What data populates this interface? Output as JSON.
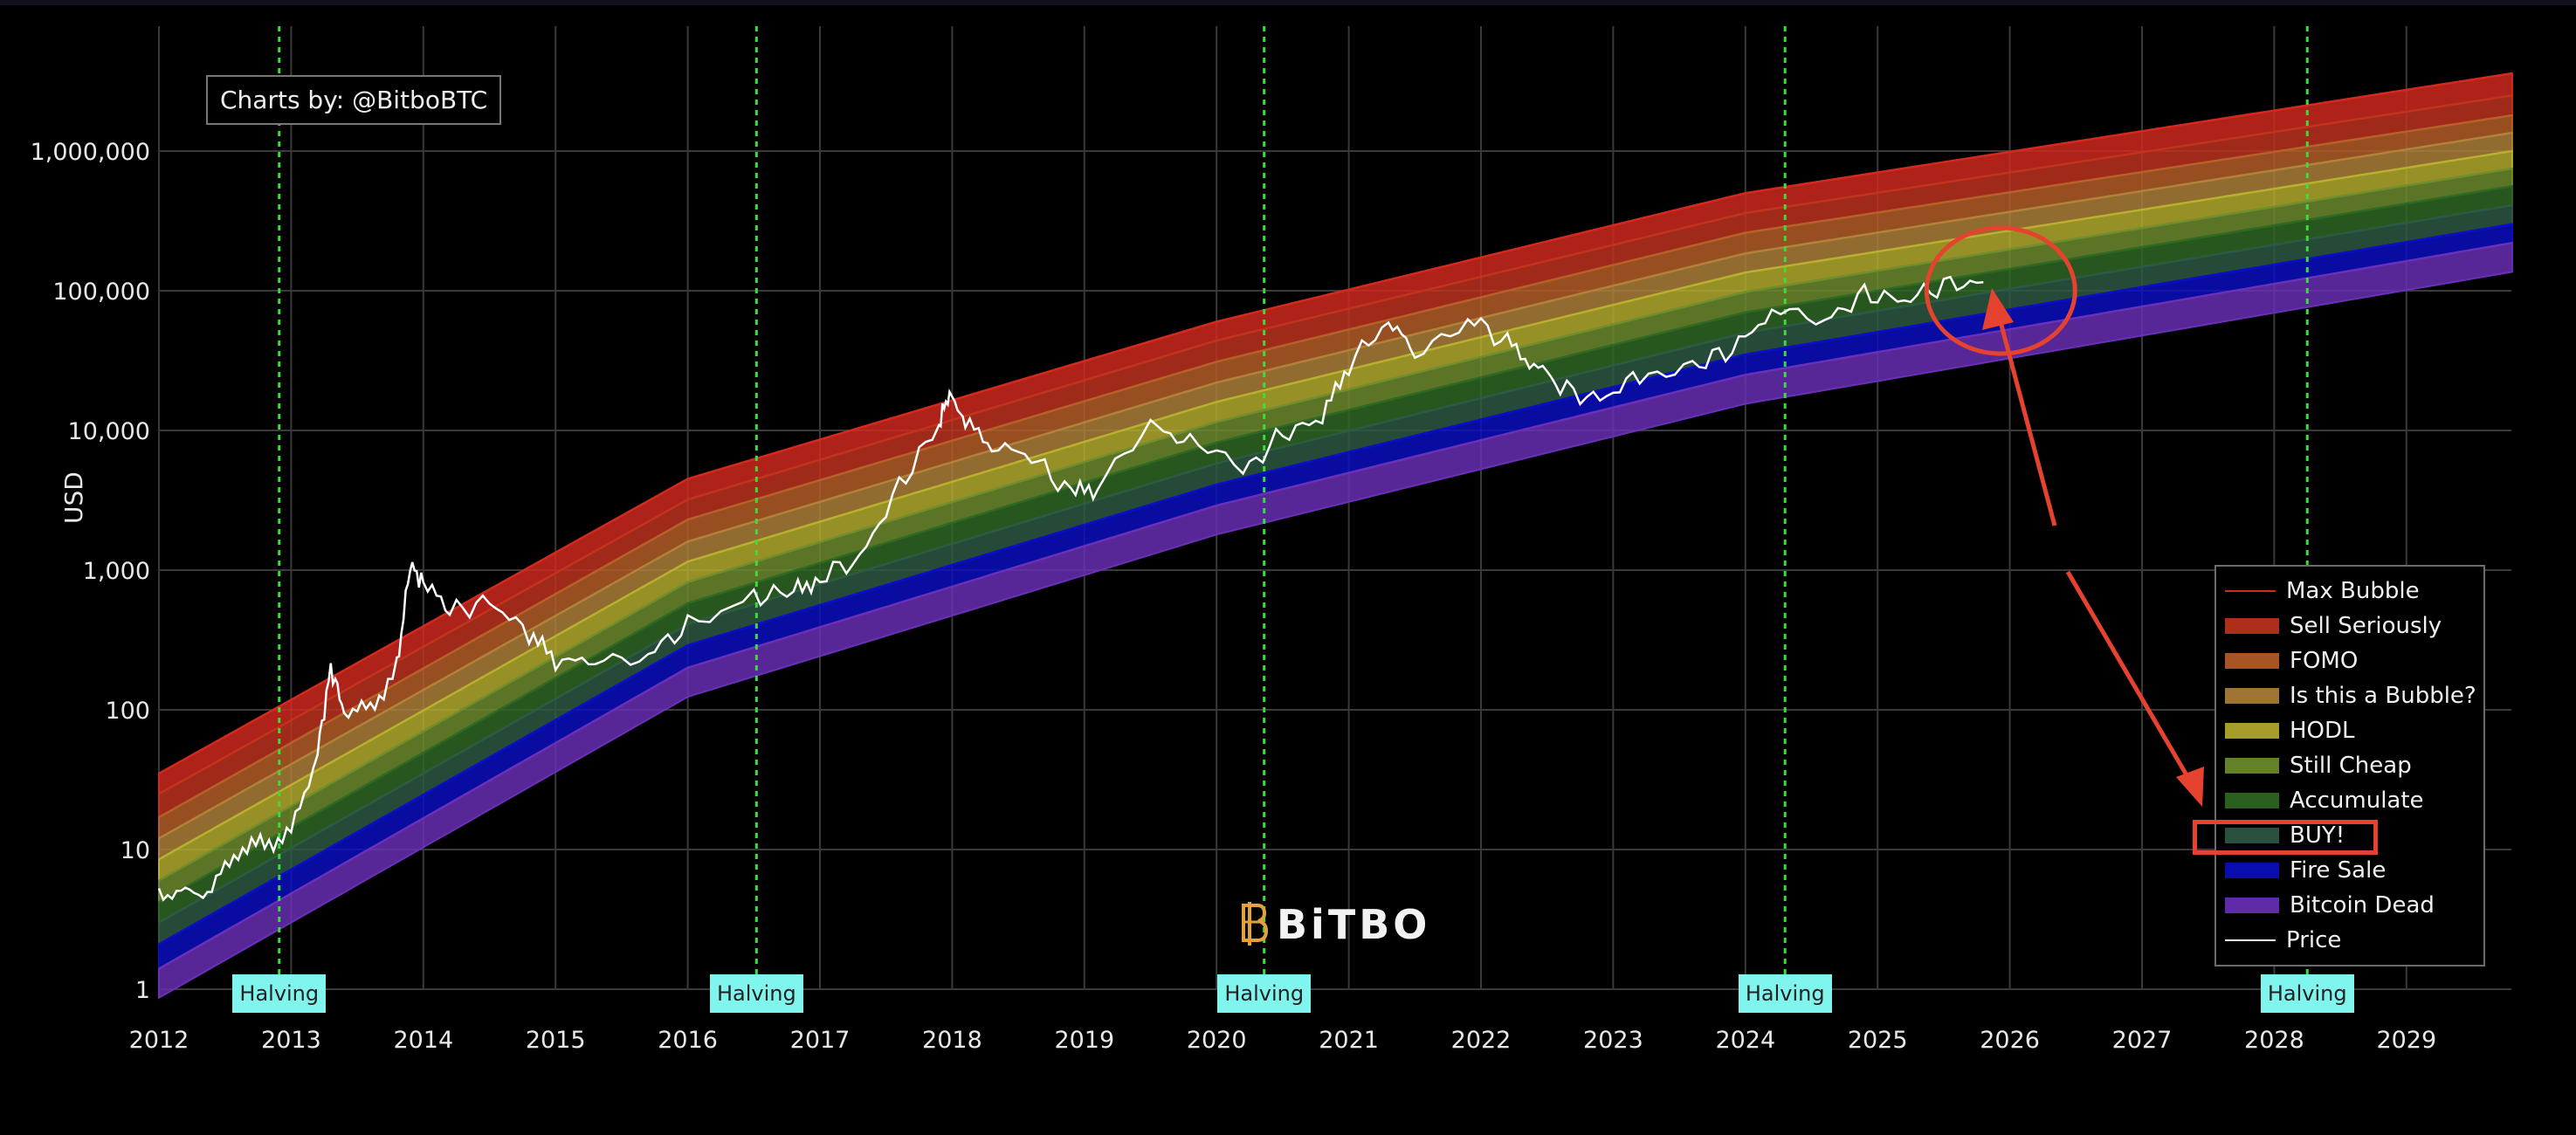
{
  "credit": "Charts by: @BitboBTC",
  "logo_text": "BiTBO",
  "icons": {
    "logo": "bitbo-b-logo-icon",
    "annotation_arrow": "arrow-icon",
    "annotation_circle": "circle-icon"
  },
  "colors": {
    "background": "#000000",
    "price": "#ffffff",
    "halving_line": "#3bdc3b",
    "halving_label_bg": "#7ff5ee",
    "annotation": "#e5432f"
  },
  "chart_data": {
    "type": "area",
    "y_scale": "log",
    "ylabel": "USD",
    "xlabel": "",
    "xlim": [
      2012.0,
      2029.8
    ],
    "ylim": [
      1,
      3500000
    ],
    "x_ticks": [
      "2012",
      "2013",
      "2014",
      "2015",
      "2016",
      "2017",
      "2018",
      "2019",
      "2020",
      "2021",
      "2022",
      "2023",
      "2024",
      "2025",
      "2026",
      "2027",
      "2028",
      "2029"
    ],
    "y_ticks": [
      {
        "value": 1,
        "label": "1"
      },
      {
        "value": 10,
        "label": "10"
      },
      {
        "value": 100,
        "label": "100"
      },
      {
        "value": 1000,
        "label": "1,000"
      },
      {
        "value": 10000,
        "label": "10,000"
      },
      {
        "value": 100000,
        "label": "100,000"
      },
      {
        "value": 1000000,
        "label": "1,000,000"
      }
    ],
    "grid": true,
    "legend_position": "bottom-right",
    "bands": [
      {
        "name": "Max Bubble",
        "color": "#d42a1e",
        "style": "line",
        "boundaries": [
          {
            "x": 2012.0,
            "y": 35
          },
          {
            "x": 2016.0,
            "y": 4500
          },
          {
            "x": 2020.0,
            "y": 60000
          },
          {
            "x": 2024.0,
            "y": 500000
          },
          {
            "x": 2029.8,
            "y": 3600000
          }
        ]
      },
      {
        "name": "Sell Seriously",
        "color": "#c2331e",
        "style": "band",
        "boundaries": [
          {
            "x": 2012.0,
            "y": 25
          },
          {
            "x": 2016.0,
            "y": 3200
          },
          {
            "x": 2020.0,
            "y": 44000
          },
          {
            "x": 2024.0,
            "y": 360000
          },
          {
            "x": 2029.8,
            "y": 2500000
          }
        ]
      },
      {
        "name": "FOMO",
        "color": "#b8602a",
        "style": "band",
        "boundaries": [
          {
            "x": 2012.0,
            "y": 17
          },
          {
            "x": 2016.0,
            "y": 2300
          },
          {
            "x": 2020.0,
            "y": 31000
          },
          {
            "x": 2024.0,
            "y": 260000
          },
          {
            "x": 2029.8,
            "y": 1800000
          }
        ]
      },
      {
        "name": "Is this a Bubble?",
        "color": "#b2823a",
        "style": "band",
        "boundaries": [
          {
            "x": 2012.0,
            "y": 12
          },
          {
            "x": 2016.0,
            "y": 1600
          },
          {
            "x": 2020.0,
            "y": 22000
          },
          {
            "x": 2024.0,
            "y": 185000
          },
          {
            "x": 2029.8,
            "y": 1350000
          }
        ]
      },
      {
        "name": "HODL",
        "color": "#b8b02e",
        "style": "band",
        "boundaries": [
          {
            "x": 2012.0,
            "y": 8.5
          },
          {
            "x": 2016.0,
            "y": 1150
          },
          {
            "x": 2020.0,
            "y": 16000
          },
          {
            "x": 2024.0,
            "y": 135000
          },
          {
            "x": 2029.8,
            "y": 1000000
          }
        ]
      },
      {
        "name": "Still Cheap",
        "color": "#6f8e2e",
        "style": "band",
        "boundaries": [
          {
            "x": 2012.0,
            "y": 6
          },
          {
            "x": 2016.0,
            "y": 820
          },
          {
            "x": 2020.0,
            "y": 11500
          },
          {
            "x": 2024.0,
            "y": 98000
          },
          {
            "x": 2029.8,
            "y": 750000
          }
        ]
      },
      {
        "name": "Accumulate",
        "color": "#2f6a24",
        "style": "band",
        "boundaries": [
          {
            "x": 2012.0,
            "y": 4.2
          },
          {
            "x": 2016.0,
            "y": 580
          },
          {
            "x": 2020.0,
            "y": 8200
          },
          {
            "x": 2024.0,
            "y": 70000
          },
          {
            "x": 2029.8,
            "y": 560000
          }
        ]
      },
      {
        "name": "BUY!",
        "color": "#2e5a44",
        "style": "band",
        "boundaries": [
          {
            "x": 2012.0,
            "y": 3.0
          },
          {
            "x": 2016.0,
            "y": 410
          },
          {
            "x": 2020.0,
            "y": 5800
          },
          {
            "x": 2024.0,
            "y": 50000
          },
          {
            "x": 2029.8,
            "y": 410000
          }
        ]
      },
      {
        "name": "Fire Sale",
        "color": "#0b0fc4",
        "style": "band",
        "boundaries": [
          {
            "x": 2012.0,
            "y": 2.1
          },
          {
            "x": 2016.0,
            "y": 290
          },
          {
            "x": 2020.0,
            "y": 4100
          },
          {
            "x": 2024.0,
            "y": 35000
          },
          {
            "x": 2029.8,
            "y": 300000
          }
        ]
      },
      {
        "name": "Bitcoin Dead",
        "color": "#6a30b8",
        "style": "band",
        "boundaries": [
          {
            "x": 2012.0,
            "y": 1.4
          },
          {
            "x": 2016.0,
            "y": 200
          },
          {
            "x": 2020.0,
            "y": 2900
          },
          {
            "x": 2024.0,
            "y": 25000
          },
          {
            "x": 2029.8,
            "y": 220000
          }
        ]
      }
    ],
    "bottom_boundary": [
      {
        "x": 2012.0,
        "y": 1.4
      },
      {
        "x": 2016.0,
        "y": 200
      },
      {
        "x": 2020.0,
        "y": 2900
      },
      {
        "x": 2024.0,
        "y": 25000
      },
      {
        "x": 2029.8,
        "y": 220000
      }
    ],
    "price_series": {
      "name": "Price",
      "color": "#ffffff",
      "points": [
        {
          "x": 2012.0,
          "y": 5
        },
        {
          "x": 2012.2,
          "y": 4.8
        },
        {
          "x": 2012.4,
          "y": 5.2
        },
        {
          "x": 2012.6,
          "y": 10
        },
        {
          "x": 2012.8,
          "y": 11
        },
        {
          "x": 2013.0,
          "y": 13
        },
        {
          "x": 2013.2,
          "y": 50
        },
        {
          "x": 2013.3,
          "y": 200
        },
        {
          "x": 2013.4,
          "y": 100
        },
        {
          "x": 2013.6,
          "y": 100
        },
        {
          "x": 2013.8,
          "y": 200
        },
        {
          "x": 2013.9,
          "y": 1100
        },
        {
          "x": 2014.0,
          "y": 800
        },
        {
          "x": 2014.2,
          "y": 500
        },
        {
          "x": 2014.5,
          "y": 600
        },
        {
          "x": 2014.8,
          "y": 350
        },
        {
          "x": 2015.0,
          "y": 220
        },
        {
          "x": 2015.3,
          "y": 230
        },
        {
          "x": 2015.7,
          "y": 250
        },
        {
          "x": 2016.0,
          "y": 400
        },
        {
          "x": 2016.5,
          "y": 650
        },
        {
          "x": 2016.8,
          "y": 700
        },
        {
          "x": 2017.0,
          "y": 900
        },
        {
          "x": 2017.3,
          "y": 1200
        },
        {
          "x": 2017.6,
          "y": 4000
        },
        {
          "x": 2017.9,
          "y": 11000
        },
        {
          "x": 2017.98,
          "y": 19000
        },
        {
          "x": 2018.1,
          "y": 11000
        },
        {
          "x": 2018.3,
          "y": 8000
        },
        {
          "x": 2018.6,
          "y": 6500
        },
        {
          "x": 2018.9,
          "y": 3500
        },
        {
          "x": 2019.1,
          "y": 3800
        },
        {
          "x": 2019.5,
          "y": 11000
        },
        {
          "x": 2019.8,
          "y": 8000
        },
        {
          "x": 2020.2,
          "y": 5000
        },
        {
          "x": 2020.5,
          "y": 9500
        },
        {
          "x": 2020.8,
          "y": 12000
        },
        {
          "x": 2021.0,
          "y": 30000
        },
        {
          "x": 2021.3,
          "y": 60000
        },
        {
          "x": 2021.5,
          "y": 35000
        },
        {
          "x": 2021.9,
          "y": 65000
        },
        {
          "x": 2022.2,
          "y": 42000
        },
        {
          "x": 2022.4,
          "y": 30000
        },
        {
          "x": 2022.6,
          "y": 20000
        },
        {
          "x": 2022.9,
          "y": 16500
        },
        {
          "x": 2023.2,
          "y": 25000
        },
        {
          "x": 2023.6,
          "y": 29000
        },
        {
          "x": 2023.9,
          "y": 38000
        },
        {
          "x": 2024.2,
          "y": 70000
        },
        {
          "x": 2024.6,
          "y": 60000
        },
        {
          "x": 2024.9,
          "y": 95000
        },
        {
          "x": 2025.2,
          "y": 85000
        },
        {
          "x": 2025.5,
          "y": 110000
        },
        {
          "x": 2025.8,
          "y": 115000
        }
      ]
    },
    "halvings": [
      {
        "x": 2012.91,
        "label": "Halving"
      },
      {
        "x": 2016.52,
        "label": "Halving"
      },
      {
        "x": 2020.36,
        "label": "Halving"
      },
      {
        "x": 2024.3,
        "label": "Halving"
      },
      {
        "x": 2028.25,
        "label": "Halving"
      }
    ],
    "legend": [
      {
        "label": "Max Bubble",
        "color": "#d42a1e",
        "style": "line"
      },
      {
        "label": "Sell Seriously",
        "color": "#c2331e",
        "style": "band"
      },
      {
        "label": "FOMO",
        "color": "#b8602a",
        "style": "band"
      },
      {
        "label": "Is this a Bubble?",
        "color": "#b2823a",
        "style": "band"
      },
      {
        "label": "HODL",
        "color": "#b8b02e",
        "style": "band"
      },
      {
        "label": "Still Cheap",
        "color": "#6f8e2e",
        "style": "band"
      },
      {
        "label": "Accumulate",
        "color": "#2f6a24",
        "style": "band"
      },
      {
        "label": "BUY!",
        "color": "#2e5a44",
        "style": "band"
      },
      {
        "label": "Fire Sale",
        "color": "#0b0fc4",
        "style": "band"
      },
      {
        "label": "Bitcoin Dead",
        "color": "#6a30b8",
        "style": "band"
      },
      {
        "label": "Price",
        "color": "#ffffff",
        "style": "line"
      }
    ],
    "annotations": [
      {
        "type": "circle",
        "target_x": 2025.8,
        "target_y": 100000,
        "color": "#e5432f"
      },
      {
        "type": "arrow",
        "target": "price",
        "color": "#e5432f"
      },
      {
        "type": "arrow",
        "target": "legend:BUY!",
        "color": "#e5432f"
      },
      {
        "type": "box",
        "target": "legend:BUY!",
        "color": "#e5432f"
      }
    ]
  }
}
